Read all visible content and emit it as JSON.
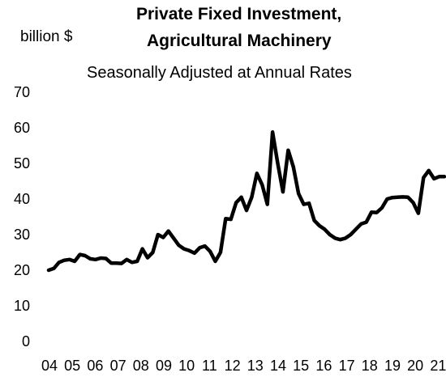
{
  "chart_data": {
    "type": "line",
    "title": "Private Fixed Investment,",
    "title_line2": "Agricultural Machinery",
    "subtitle": "Seasonally Adjusted at Annual Rates",
    "ylabel": "billion $",
    "xlabel": "",
    "ylim": [
      0,
      70
    ],
    "y_ticks": [
      0,
      10,
      20,
      30,
      40,
      50,
      60,
      70
    ],
    "x_tick_labels": [
      "04",
      "05",
      "06",
      "07",
      "08",
      "09",
      "10",
      "11",
      "12",
      "13",
      "14",
      "15",
      "16",
      "17",
      "18",
      "19",
      "20",
      "21"
    ],
    "grid": false,
    "legend": "none",
    "line_color": "#000000",
    "series": [
      {
        "values": [
          20.0,
          20.5,
          22.2,
          22.8,
          23.0,
          22.5,
          24.4,
          24.1,
          23.2,
          23.0,
          23.4,
          23.3,
          22.0,
          22.0,
          21.9,
          23.0,
          22.2,
          22.5,
          26.0,
          23.5,
          25.0,
          30.0,
          29.2,
          31.0,
          29.0,
          27.0,
          26.0,
          25.5,
          24.8,
          26.3,
          26.8,
          25.3,
          22.5,
          25.0,
          34.5,
          34.3,
          39.0,
          40.5,
          36.8,
          40.5,
          47.2,
          44.0,
          38.5,
          58.8,
          50.0,
          42.0,
          53.7,
          49.0,
          41.5,
          38.5,
          38.8,
          34.0,
          32.5,
          31.5,
          30.0,
          29.0,
          28.6,
          29.0,
          30.0,
          31.5,
          33.0,
          33.5,
          36.3,
          36.2,
          37.5,
          40.0,
          40.4,
          40.5,
          40.6,
          40.5,
          39.0,
          36.0,
          46.0,
          48.0,
          45.7,
          46.3,
          46.3
        ]
      }
    ]
  }
}
